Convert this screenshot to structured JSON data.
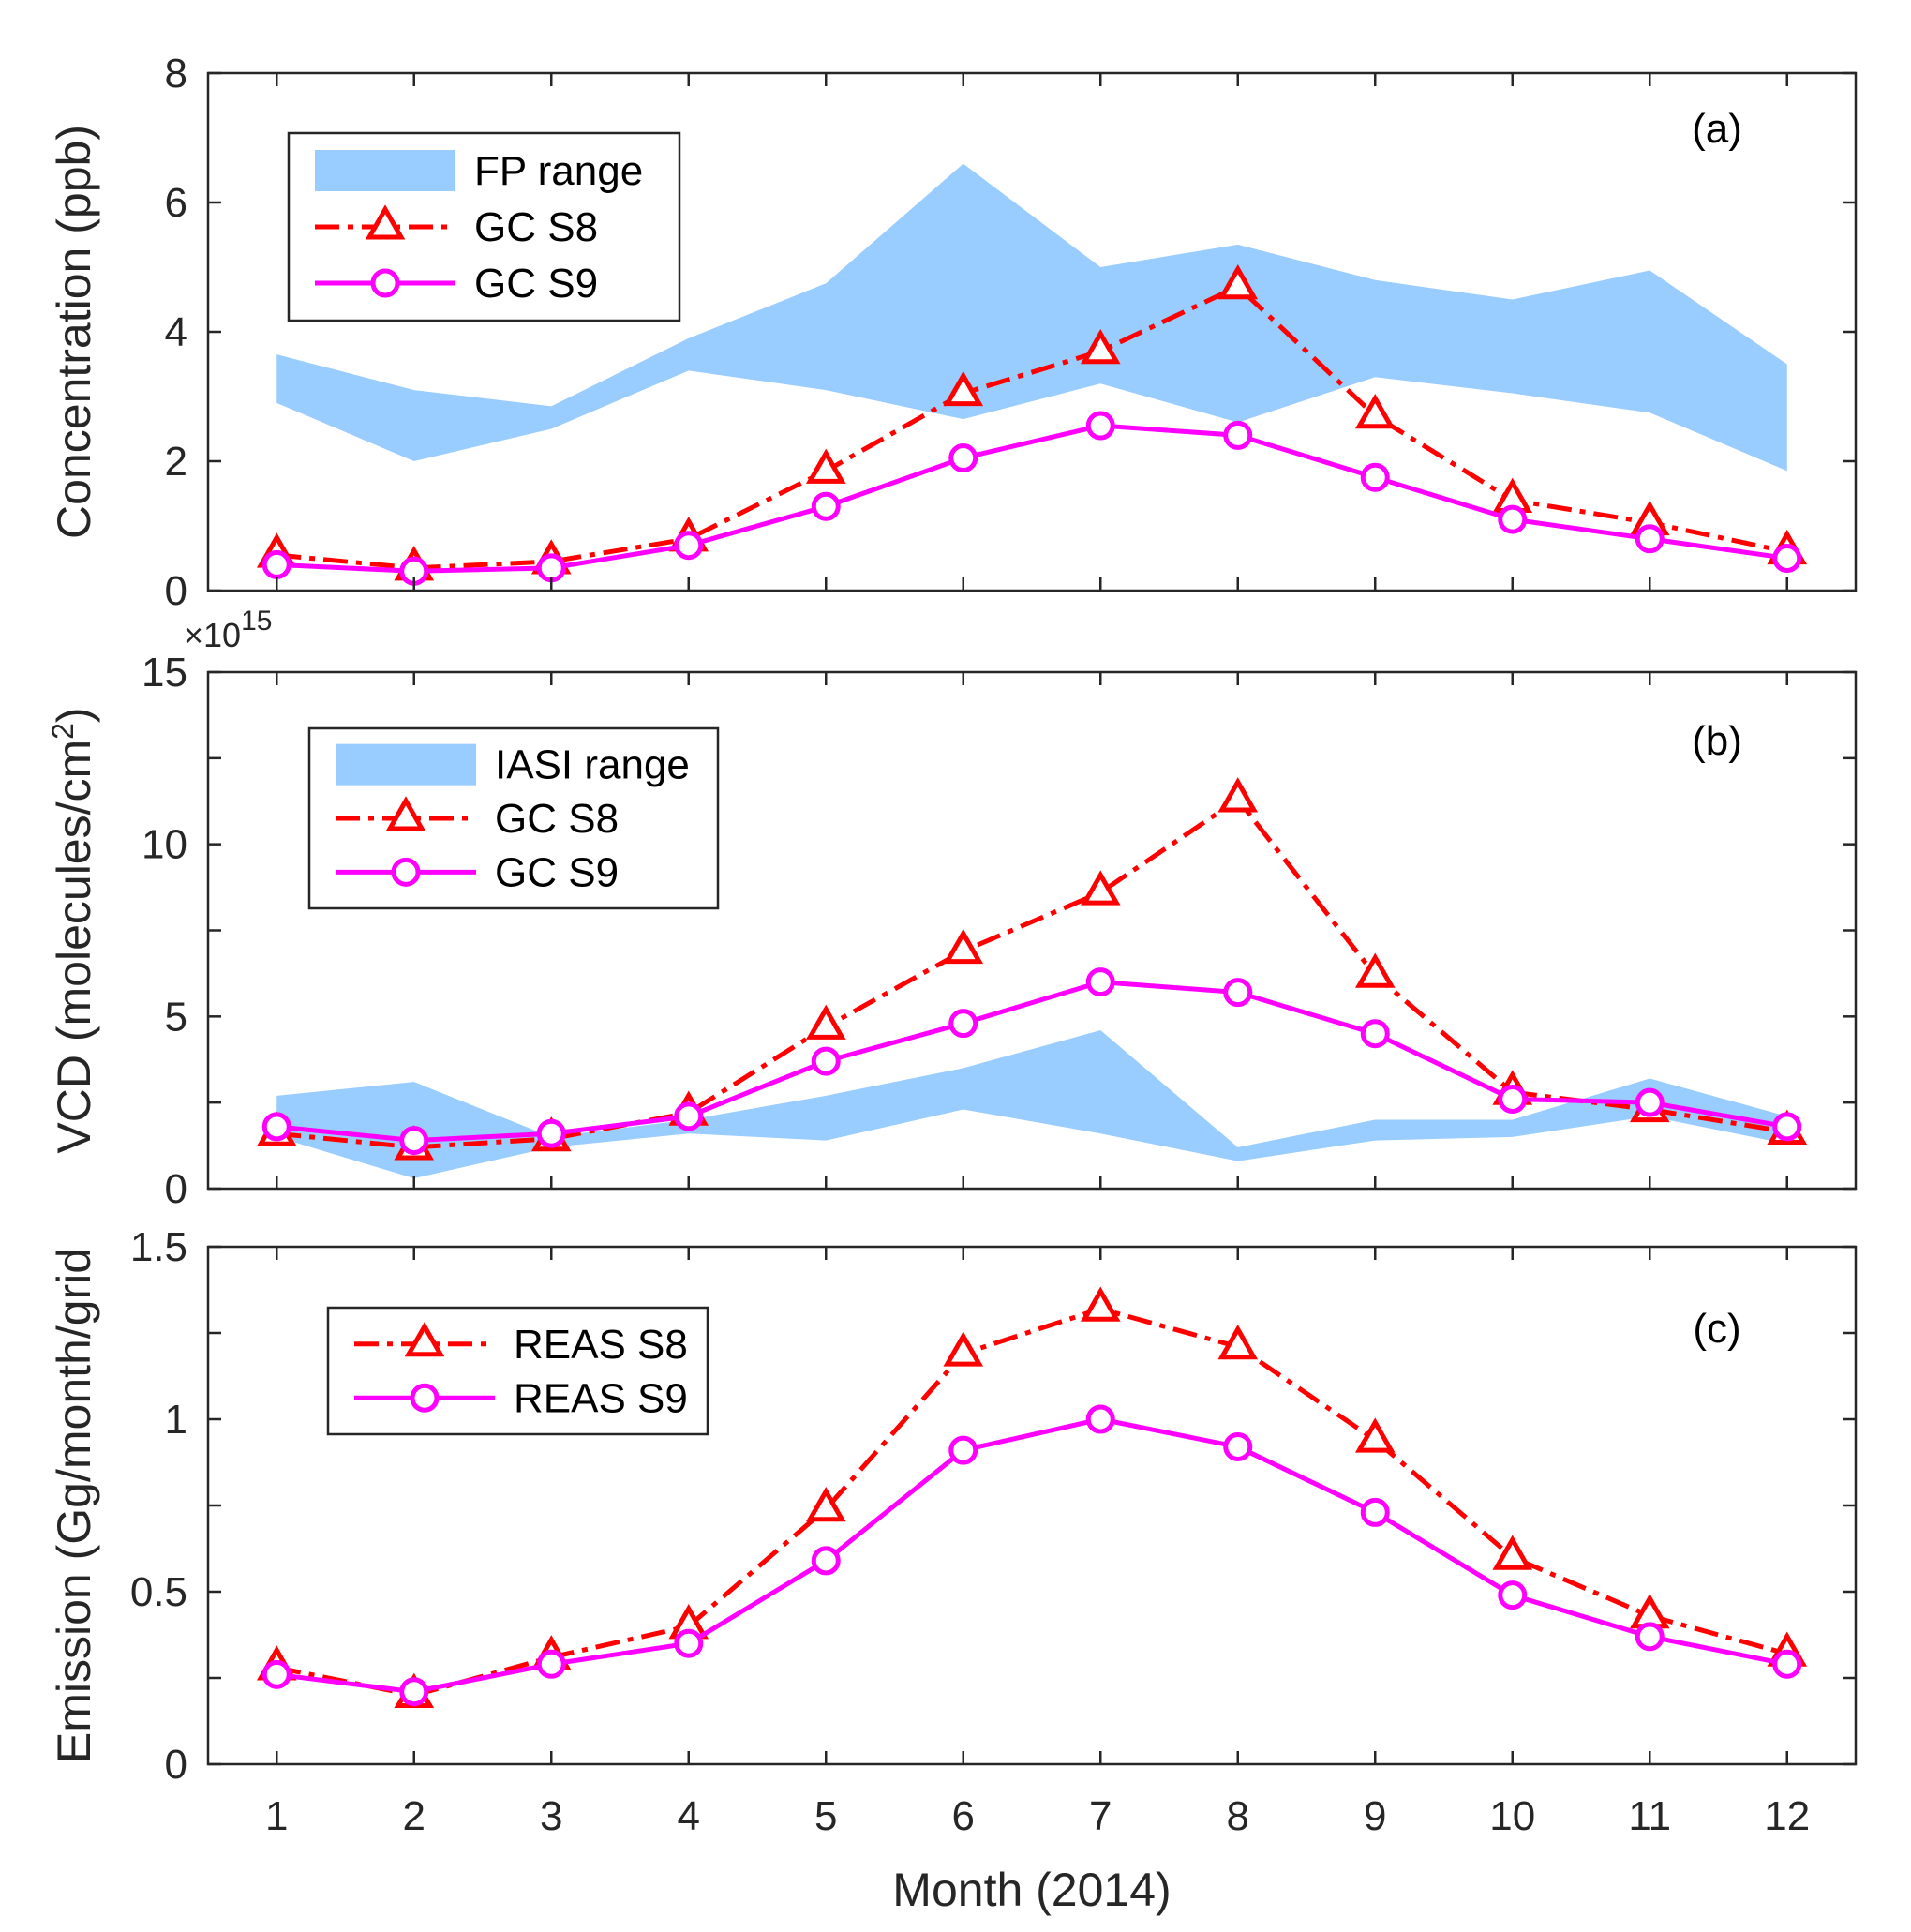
{
  "colors": {
    "band": "#99ccff",
    "s8": "#ff0000",
    "s9": "#ff00ff",
    "axis": "#262626"
  },
  "x_axis": {
    "label": "Month (2014)",
    "ticks": [
      "1",
      "2",
      "3",
      "4",
      "5",
      "6",
      "7",
      "8",
      "9",
      "10",
      "11",
      "12"
    ],
    "xlim": [
      0.5,
      12.5
    ]
  },
  "chart_data": [
    {
      "type": "line",
      "tag": "(a)",
      "ylabel": "Concentration (ppb)",
      "ylim": [
        0,
        8
      ],
      "yticks": [
        "0",
        "2",
        "4",
        "6",
        "8"
      ],
      "x": [
        1,
        2,
        3,
        4,
        5,
        6,
        7,
        8,
        9,
        10,
        11,
        12
      ],
      "band": {
        "name": "FP range",
        "lower": [
          2.9,
          2.0,
          2.5,
          3.4,
          3.1,
          2.65,
          3.2,
          2.6,
          3.3,
          3.05,
          2.75,
          1.85
        ],
        "upper": [
          3.65,
          3.1,
          2.85,
          3.9,
          4.75,
          6.6,
          5.0,
          5.35,
          4.8,
          4.5,
          4.95,
          3.5
        ]
      },
      "series": [
        {
          "name": "GC S8",
          "marker": "triangle",
          "dash": "dashdot",
          "values": [
            0.55,
            0.35,
            0.45,
            0.8,
            1.85,
            3.05,
            3.7,
            4.7,
            2.7,
            1.4,
            1.05,
            0.6
          ]
        },
        {
          "name": "GC S9",
          "marker": "circle",
          "dash": "solid",
          "values": [
            0.4,
            0.3,
            0.35,
            0.7,
            1.3,
            2.05,
            2.55,
            2.4,
            1.75,
            1.1,
            0.8,
            0.5
          ]
        }
      ]
    },
    {
      "type": "line",
      "tag": "(b)",
      "ylabel": "VCD (molecules/cm",
      "ylabel_sup": "2",
      "ylabel_end": ")",
      "exponent_base": "×10",
      "exponent_power": "15",
      "ylim": [
        0,
        15
      ],
      "yticks": [
        "0",
        "5",
        "10",
        "15"
      ],
      "x": [
        1,
        2,
        3,
        4,
        5,
        6,
        7,
        8,
        9,
        10,
        11,
        12
      ],
      "band": {
        "name": "IASI range",
        "lower": [
          1.5,
          0.3,
          1.2,
          1.6,
          1.4,
          2.3,
          1.6,
          0.8,
          1.4,
          1.5,
          2.1,
          1.3
        ],
        "upper": [
          2.7,
          3.1,
          1.5,
          2.0,
          2.7,
          3.5,
          4.6,
          1.2,
          2.0,
          2.0,
          3.2,
          2.1
        ]
      },
      "series": [
        {
          "name": "GC S8",
          "marker": "triangle",
          "dash": "dashdot",
          "values": [
            1.6,
            1.2,
            1.45,
            2.2,
            4.7,
            6.9,
            8.6,
            11.3,
            6.2,
            2.8,
            2.3,
            1.65
          ]
        },
        {
          "name": "GC S9",
          "marker": "circle",
          "dash": "solid",
          "values": [
            1.8,
            1.4,
            1.6,
            2.1,
            3.7,
            4.8,
            6.0,
            5.7,
            4.5,
            2.6,
            2.5,
            1.8
          ]
        }
      ]
    },
    {
      "type": "line",
      "tag": "(c)",
      "ylabel": "Emission (Gg/month/grid",
      "ylim": [
        0,
        1.5
      ],
      "yticks": [
        "0",
        "0.5",
        "1",
        "1.5"
      ],
      "x": [
        1,
        2,
        3,
        4,
        5,
        6,
        7,
        8,
        9,
        10,
        11,
        12
      ],
      "series": [
        {
          "name": "REAS S8",
          "marker": "triangle",
          "dash": "dashdot",
          "values": [
            0.28,
            0.2,
            0.31,
            0.4,
            0.74,
            1.19,
            1.32,
            1.21,
            0.94,
            0.6,
            0.43,
            0.32
          ]
        },
        {
          "name": "REAS S9",
          "marker": "circle",
          "dash": "solid",
          "values": [
            0.26,
            0.21,
            0.29,
            0.35,
            0.59,
            0.91,
            1.0,
            0.92,
            0.73,
            0.49,
            0.37,
            0.29
          ]
        }
      ]
    }
  ]
}
